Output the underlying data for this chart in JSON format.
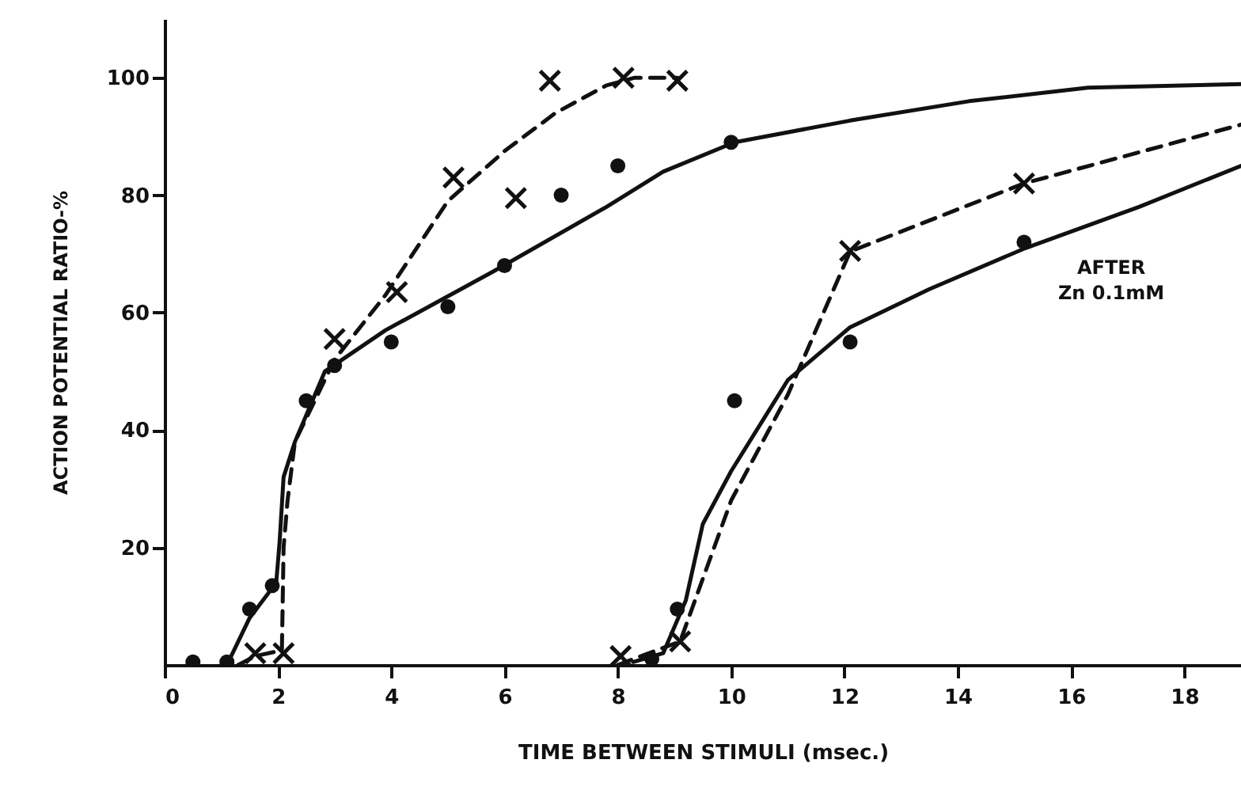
{
  "chart_data": {
    "type": "line",
    "xlabel": "TIME BETWEEN STIMULI (msec.)",
    "ylabel": "ACTION POTENTIAL RATIO-%",
    "xlim": [
      0,
      19
    ],
    "ylim": [
      0,
      110
    ],
    "xticks": [
      0,
      2,
      4,
      6,
      8,
      10,
      12,
      14,
      16,
      18
    ],
    "yticks": [
      20,
      40,
      60,
      80,
      100
    ],
    "grid": false,
    "series": [
      {
        "line_style": "solid",
        "color": "#111111",
        "x": [
          1.1,
          1.5,
          1.97,
          2.03,
          2.1,
          2.3,
          2.83,
          3.9,
          5.8,
          7.8,
          8.8,
          10.06,
          12.1,
          14.2,
          16.3,
          19
        ],
        "values": [
          0,
          8,
          14,
          21,
          32,
          38,
          50,
          57,
          67,
          78,
          84,
          89,
          92.7,
          96,
          98.3,
          98.9
        ]
      },
      {
        "line_style": "dashed",
        "color": "#111111",
        "x": [
          1.3,
          1.6,
          2.07,
          2.1,
          2.17,
          2.3,
          3.0,
          3.9,
          5.0,
          6.0,
          6.9,
          7.8,
          8.3,
          9.05
        ],
        "values": [
          0,
          1.5,
          2.5,
          20,
          28,
          38,
          52,
          63,
          79,
          87.5,
          94,
          98.7,
          100,
          100
        ]
      },
      {
        "type": "scatter",
        "marker": "circle",
        "color": "#111111",
        "x": [
          0.5,
          1.1,
          1.5,
          1.9,
          2.5,
          3.0,
          4.0,
          5.0,
          6.0,
          7.0,
          8.0,
          10.0
        ],
        "values": [
          0.5,
          0.5,
          9.5,
          13.5,
          45,
          51,
          55,
          61,
          68,
          80,
          85,
          89
        ]
      },
      {
        "type": "scatter",
        "marker": "cross",
        "color": "#111111",
        "x": [
          1.6,
          2.1,
          3.0,
          4.1,
          5.1,
          6.2,
          6.8,
          8.1,
          9.05
        ],
        "values": [
          2,
          2,
          55.5,
          63.5,
          83,
          79.5,
          99.5,
          100,
          99.5
        ]
      },
      {
        "line_style": "solid",
        "color": "#111111",
        "x": [
          8.27,
          8.8,
          9.2,
          9.5,
          10.0,
          11.0,
          12.1,
          13.5,
          15.2,
          17.2,
          19
        ],
        "values": [
          0.5,
          2,
          11,
          24,
          33,
          48.5,
          57.5,
          64,
          71,
          78,
          85
        ]
      },
      {
        "line_style": "dashed",
        "color": "#111111",
        "x": [
          8.0,
          9.1,
          10.0,
          11.0,
          12.1,
          15.17,
          19
        ],
        "values": [
          0,
          4,
          28,
          46,
          70.4,
          82,
          92
        ]
      },
      {
        "type": "scatter",
        "marker": "circle",
        "color": "#111111",
        "x": [
          8.6,
          9.05,
          10.06,
          12.1,
          15.17
        ],
        "values": [
          1,
          9.5,
          45,
          55,
          72
        ]
      },
      {
        "type": "scatter",
        "marker": "cross",
        "color": "#111111",
        "x": [
          8.05,
          9.1,
          12.1,
          15.17
        ],
        "values": [
          1.5,
          4,
          70.5,
          82
        ]
      }
    ],
    "annotations": [
      "AFTER\nZn 0.1mM"
    ]
  }
}
